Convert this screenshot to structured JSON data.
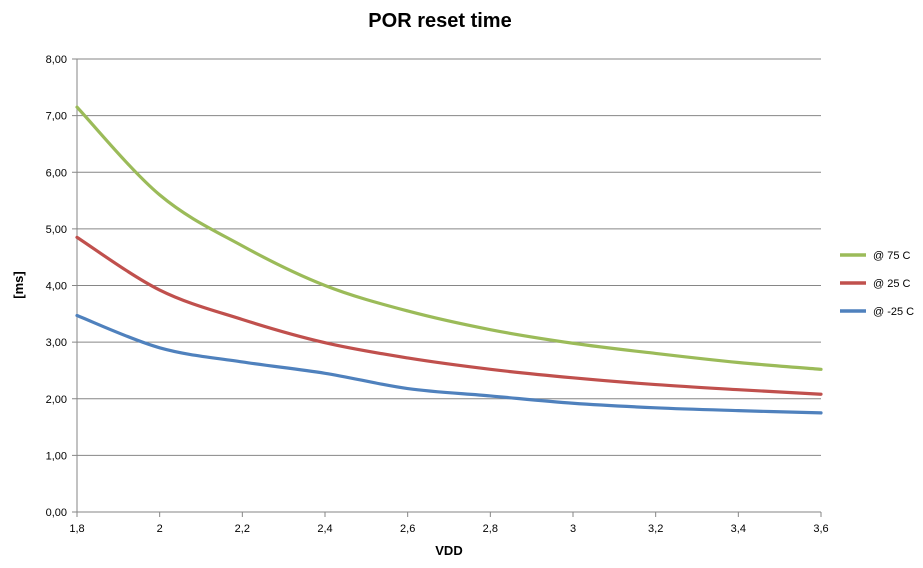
{
  "chart_data": {
    "type": "line",
    "title": "POR reset time",
    "xlabel": "VDD",
    "ylabel": "[ms]",
    "xlim": [
      1.8,
      3.6
    ],
    "ylim": [
      0,
      8
    ],
    "x_ticks": [
      "1,8",
      "2",
      "2,2",
      "2,4",
      "2,6",
      "2,8",
      "3",
      "3,2",
      "3,4",
      "3,6"
    ],
    "x_tick_values": [
      1.8,
      2.0,
      2.2,
      2.4,
      2.6,
      2.8,
      3.0,
      3.2,
      3.4,
      3.6
    ],
    "y_ticks": [
      "0,00",
      "1,00",
      "2,00",
      "3,00",
      "4,00",
      "5,00",
      "6,00",
      "7,00",
      "8,00"
    ],
    "y_tick_values": [
      0,
      1,
      2,
      3,
      4,
      5,
      6,
      7,
      8
    ],
    "grid": true,
    "legend_position": "right",
    "x": [
      1.8,
      2.0,
      2.2,
      2.4,
      2.6,
      2.8,
      3.0,
      3.2,
      3.4,
      3.6
    ],
    "series": [
      {
        "name": "@ 75 C",
        "color": "#9BBB59",
        "values": [
          7.15,
          5.6,
          4.7,
          4.0,
          3.55,
          3.22,
          2.98,
          2.8,
          2.64,
          2.52
        ]
      },
      {
        "name": "@ 25 C",
        "color": "#C0504D",
        "values": [
          4.85,
          3.92,
          3.4,
          2.99,
          2.72,
          2.52,
          2.37,
          2.25,
          2.16,
          2.08
        ]
      },
      {
        "name": "@ -25 C",
        "color": "#4F81BD",
        "values": [
          3.47,
          2.9,
          2.65,
          2.45,
          2.18,
          2.05,
          1.92,
          1.84,
          1.79,
          1.75
        ]
      }
    ]
  }
}
